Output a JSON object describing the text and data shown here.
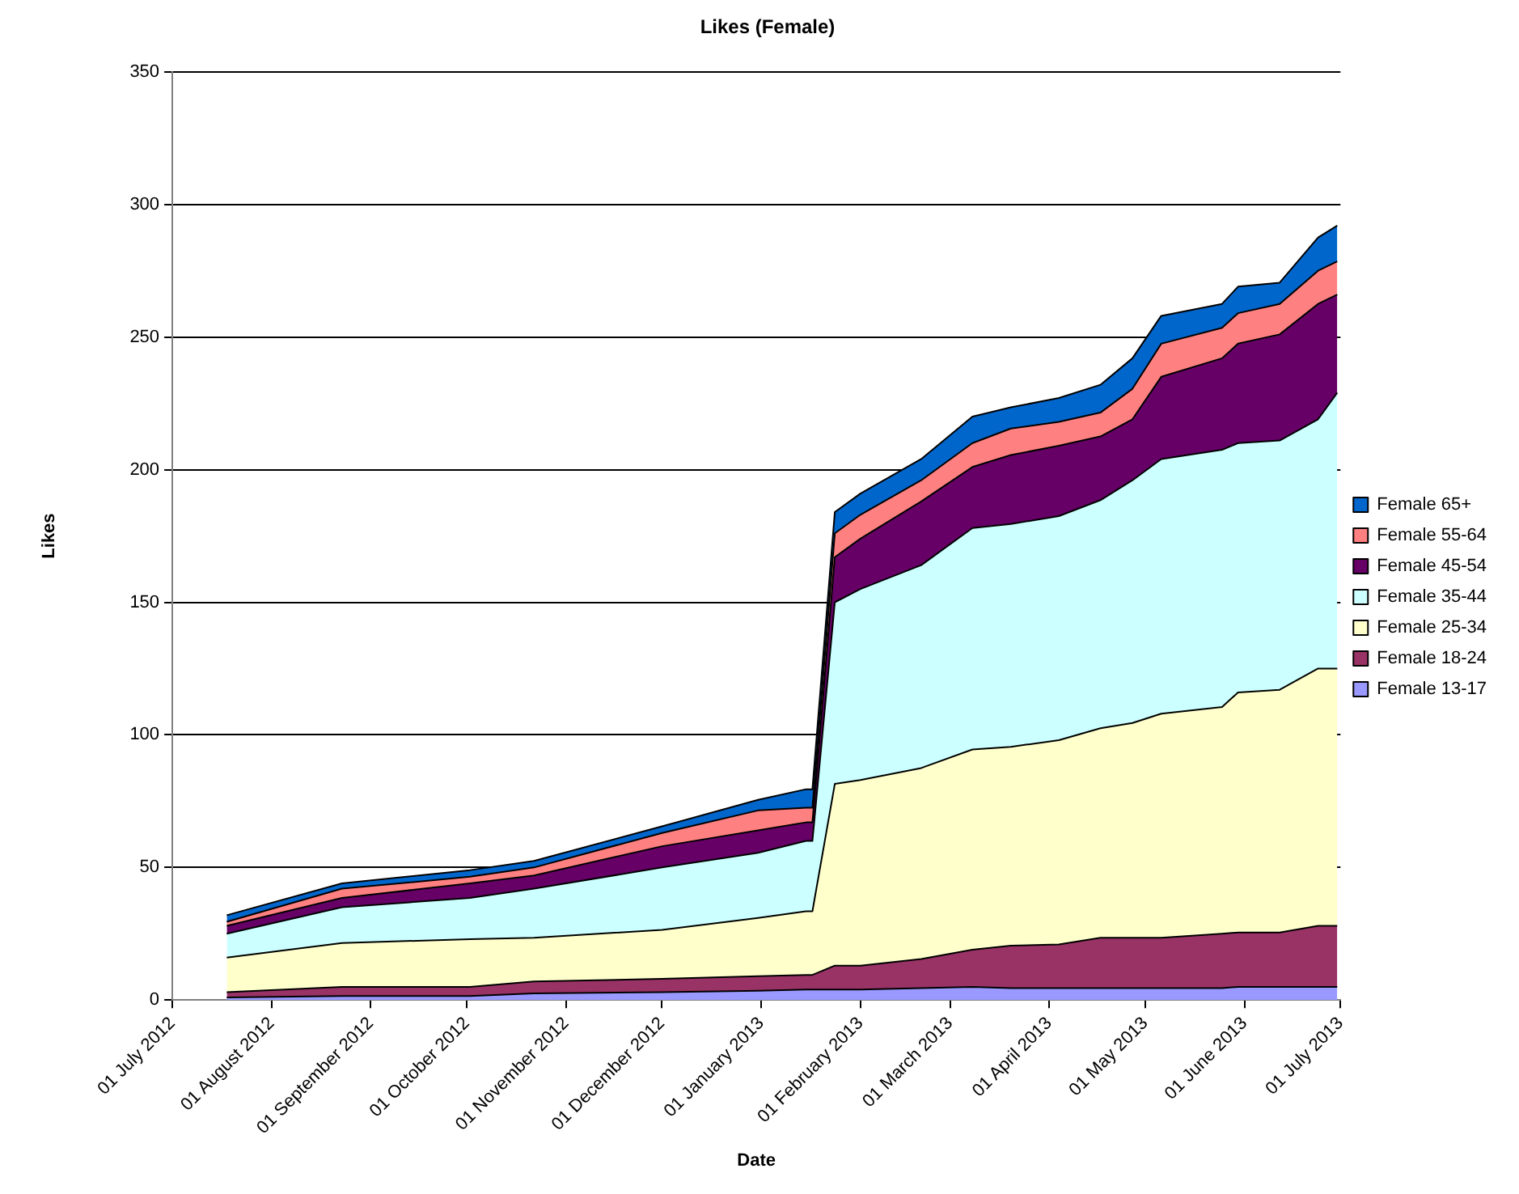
{
  "chart_data": {
    "type": "area",
    "title": "Likes (Female)",
    "xlabel": "Date",
    "ylabel": "Likes",
    "stacked": true,
    "grid": "y",
    "legend": "right",
    "marker": "none",
    "x": [
      "2012-07-18",
      "2012-08-23",
      "2012-10-02",
      "2012-10-22",
      "2012-12-01",
      "2012-12-31",
      "2013-01-15",
      "2013-01-17",
      "2013-01-24",
      "2013-02-01",
      "2013-02-20",
      "2013-03-08",
      "2013-03-20",
      "2013-04-04",
      "2013-04-17",
      "2013-04-27",
      "2013-05-06",
      "2013-05-25",
      "2013-05-30",
      "2013-06-12",
      "2013-06-24",
      "2013-06-30"
    ],
    "xlim": [
      "2012-07-01",
      "2013-07-01"
    ],
    "xticks": [
      {
        "value": "2012-07-01",
        "label": "01 July 2012"
      },
      {
        "value": "2012-08-01",
        "label": "01 August 2012"
      },
      {
        "value": "2012-09-01",
        "label": "01 September 2012"
      },
      {
        "value": "2012-10-01",
        "label": "01 October 2012"
      },
      {
        "value": "2012-11-01",
        "label": "01 November 2012"
      },
      {
        "value": "2012-12-01",
        "label": "01 December 2012"
      },
      {
        "value": "2013-01-01",
        "label": "01 January 2013"
      },
      {
        "value": "2013-02-01",
        "label": "01 February 2013"
      },
      {
        "value": "2013-03-01",
        "label": "01 March 2013"
      },
      {
        "value": "2013-04-01",
        "label": "01 April 2013"
      },
      {
        "value": "2013-05-01",
        "label": "01 May 2013"
      },
      {
        "value": "2013-06-01",
        "label": "01 June 2013"
      },
      {
        "value": "2013-07-01",
        "label": "01 July 2013"
      }
    ],
    "ylim": [
      0,
      350
    ],
    "yticks": [
      0,
      50,
      100,
      150,
      200,
      250,
      300,
      350
    ],
    "series": [
      {
        "name": "Female 13-17",
        "color": "#9999ff",
        "values": [
          1,
          1.5,
          1.5,
          2.5,
          3,
          3.5,
          4,
          4,
          4,
          4,
          4.5,
          5,
          4.5,
          4.5,
          4.5,
          4.5,
          4.5,
          4.5,
          5,
          5,
          5,
          5
        ]
      },
      {
        "name": "Female 18-24",
        "color": "#993366",
        "values": [
          2,
          3.5,
          3.5,
          4.5,
          5,
          5.5,
          5.5,
          5.5,
          9,
          9,
          11,
          14,
          16,
          16.5,
          19,
          19,
          19,
          20.5,
          20.5,
          20.5,
          23,
          23
        ]
      },
      {
        "name": "Female 25-34",
        "color": "#ffffcc",
        "values": [
          13,
          16.5,
          18,
          16.5,
          18.5,
          22,
          24,
          24,
          68.5,
          70,
          72,
          75.5,
          75,
          77,
          79,
          81,
          84.5,
          85.5,
          90.5,
          91.5,
          97,
          97
        ]
      },
      {
        "name": "Female 35-44",
        "color": "#ccffff",
        "values": [
          9,
          13.5,
          15.5,
          18.5,
          23.5,
          24.5,
          26.5,
          26.5,
          68.5,
          72,
          76.5,
          83.5,
          84,
          84.5,
          86,
          91.5,
          96,
          97,
          94,
          94,
          94,
          104
        ]
      },
      {
        "name": "Female 45-54",
        "color": "#660066",
        "values": [
          3,
          3.5,
          5.5,
          5,
          8,
          8.5,
          7,
          7,
          17,
          19,
          24,
          23,
          26,
          26.5,
          24,
          23,
          31,
          34.5,
          37.5,
          40,
          43.5,
          37
        ]
      },
      {
        "name": "Female 55-64",
        "color": "#ff8080",
        "values": [
          1.5,
          3.5,
          2.5,
          3,
          5,
          7.5,
          5.5,
          5.5,
          9,
          9,
          8,
          9,
          10,
          9,
          9,
          11.5,
          12.5,
          11.5,
          11.5,
          11.5,
          12.5,
          12.5
        ]
      },
      {
        "name": "Female 65+",
        "color": "#0066cc",
        "values": [
          2.5,
          2,
          2.5,
          2.5,
          2.5,
          4,
          7,
          7,
          8,
          8,
          8,
          10,
          8,
          9,
          10.5,
          11.5,
          10.5,
          9,
          10,
          8,
          12.5,
          13.5
        ]
      }
    ]
  }
}
